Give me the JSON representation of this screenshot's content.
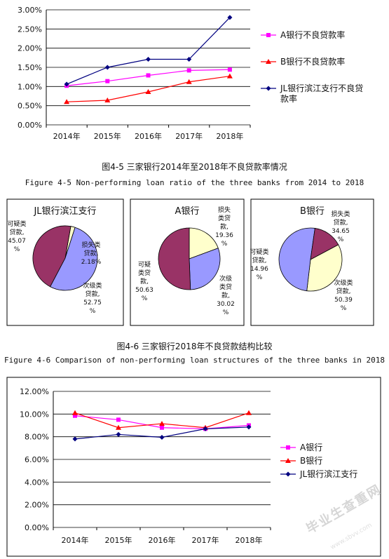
{
  "colors": {
    "a": "#ff00ff",
    "b": "#ff0000",
    "jl": "#000080",
    "pie1": "#993366",
    "pie2": "#ffffcc",
    "pie3": "#9999ff"
  },
  "chart_data": [
    {
      "type": "line",
      "categories": [
        "2014年",
        "2015年",
        "2016年",
        "2017年",
        "2018年"
      ],
      "ylim": [
        0,
        3
      ],
      "yticks": [
        "0.00%",
        "0.50%",
        "1.00%",
        "1.50%",
        "2.00%",
        "2.50%",
        "3.00%"
      ],
      "series": [
        {
          "name": "A银行不良贷款率",
          "key": "a",
          "values": [
            1.02,
            1.14,
            1.29,
            1.42,
            1.44
          ]
        },
        {
          "name": "B银行不良贷款率",
          "key": "b",
          "values": [
            0.6,
            0.64,
            0.86,
            1.12,
            1.27
          ]
        },
        {
          "name": "JL银行滨江支行不良贷款率",
          "key": "jl",
          "values": [
            1.06,
            1.5,
            1.71,
            1.71,
            2.8
          ]
        }
      ]
    },
    {
      "type": "pie",
      "panels": [
        {
          "title": "JL银行滨江支行",
          "slices": [
            {
              "label": "可疑类贷款",
              "value": 45.07,
              "display": "可疑类\n贷款,\n45.07\n%",
              "key": "pie1"
            },
            {
              "label": "损失类贷款",
              "value": 2.18,
              "display": "损失类\n贷款,\n2.18%",
              "key": "pie2"
            },
            {
              "label": "次级类贷款",
              "value": 52.75,
              "display": "次级类\n贷款,\n52.75\n%",
              "key": "pie3"
            }
          ]
        },
        {
          "title": "A银行",
          "slices": [
            {
              "label": "可疑类贷款",
              "value": 50.63,
              "display": "可疑\n类贷\n款,\n50.63\n%",
              "key": "pie1"
            },
            {
              "label": "损失类贷款",
              "value": 19.36,
              "display": "损失\n类贷\n款,\n19.36\n%",
              "key": "pie2"
            },
            {
              "label": "次级类贷款",
              "value": 30.02,
              "display": "次级\n类贷\n款,\n30.02\n%",
              "key": "pie3"
            }
          ]
        },
        {
          "title": "B银行",
          "slices": [
            {
              "label": "可疑类贷款",
              "value": 14.96,
              "display": "可疑类\n贷款,\n14.96\n%",
              "key": "pie1"
            },
            {
              "label": "损失类贷款",
              "value": 34.65,
              "display": "损失类\n贷款,\n34.65\n%",
              "key": "pie2"
            },
            {
              "label": "次级类贷款",
              "value": 50.39,
              "display": "次级类\n贷款,\n50.39\n%",
              "key": "pie3"
            }
          ]
        }
      ]
    },
    {
      "type": "line",
      "categories": [
        "2014年",
        "2015年",
        "2016年",
        "2017年",
        "2018年"
      ],
      "ylim": [
        0,
        12
      ],
      "yticks": [
        "0.00%",
        "2.00%",
        "4.00%",
        "6.00%",
        "8.00%",
        "10.00%",
        "12.00%"
      ],
      "series": [
        {
          "name": "A银行",
          "key": "a",
          "values": [
            9.85,
            9.5,
            8.8,
            8.7,
            9.0
          ]
        },
        {
          "name": "B银行",
          "key": "b",
          "values": [
            10.1,
            8.8,
            9.15,
            8.8,
            10.1
          ]
        },
        {
          "name": "JL银行滨江支行",
          "key": "jl",
          "values": [
            7.8,
            8.2,
            7.95,
            8.7,
            8.85
          ]
        }
      ]
    }
  ],
  "captions": {
    "fig45_cn": "图4-5 三家银行2014年至2018年不良贷款率情况",
    "fig45_en": "Figure 4-5 Non-performing loan ratio of the three banks from 2014 to 2018",
    "fig46_cn": "图4-6 三家银行2018年不良贷款结构比较",
    "fig46_en": "Figure 4-6 Comparison of non-performing loan structures of the three banks in 2018"
  },
  "watermark": {
    "main": "毕业生查重网",
    "sub": "www.sbvv.com"
  }
}
